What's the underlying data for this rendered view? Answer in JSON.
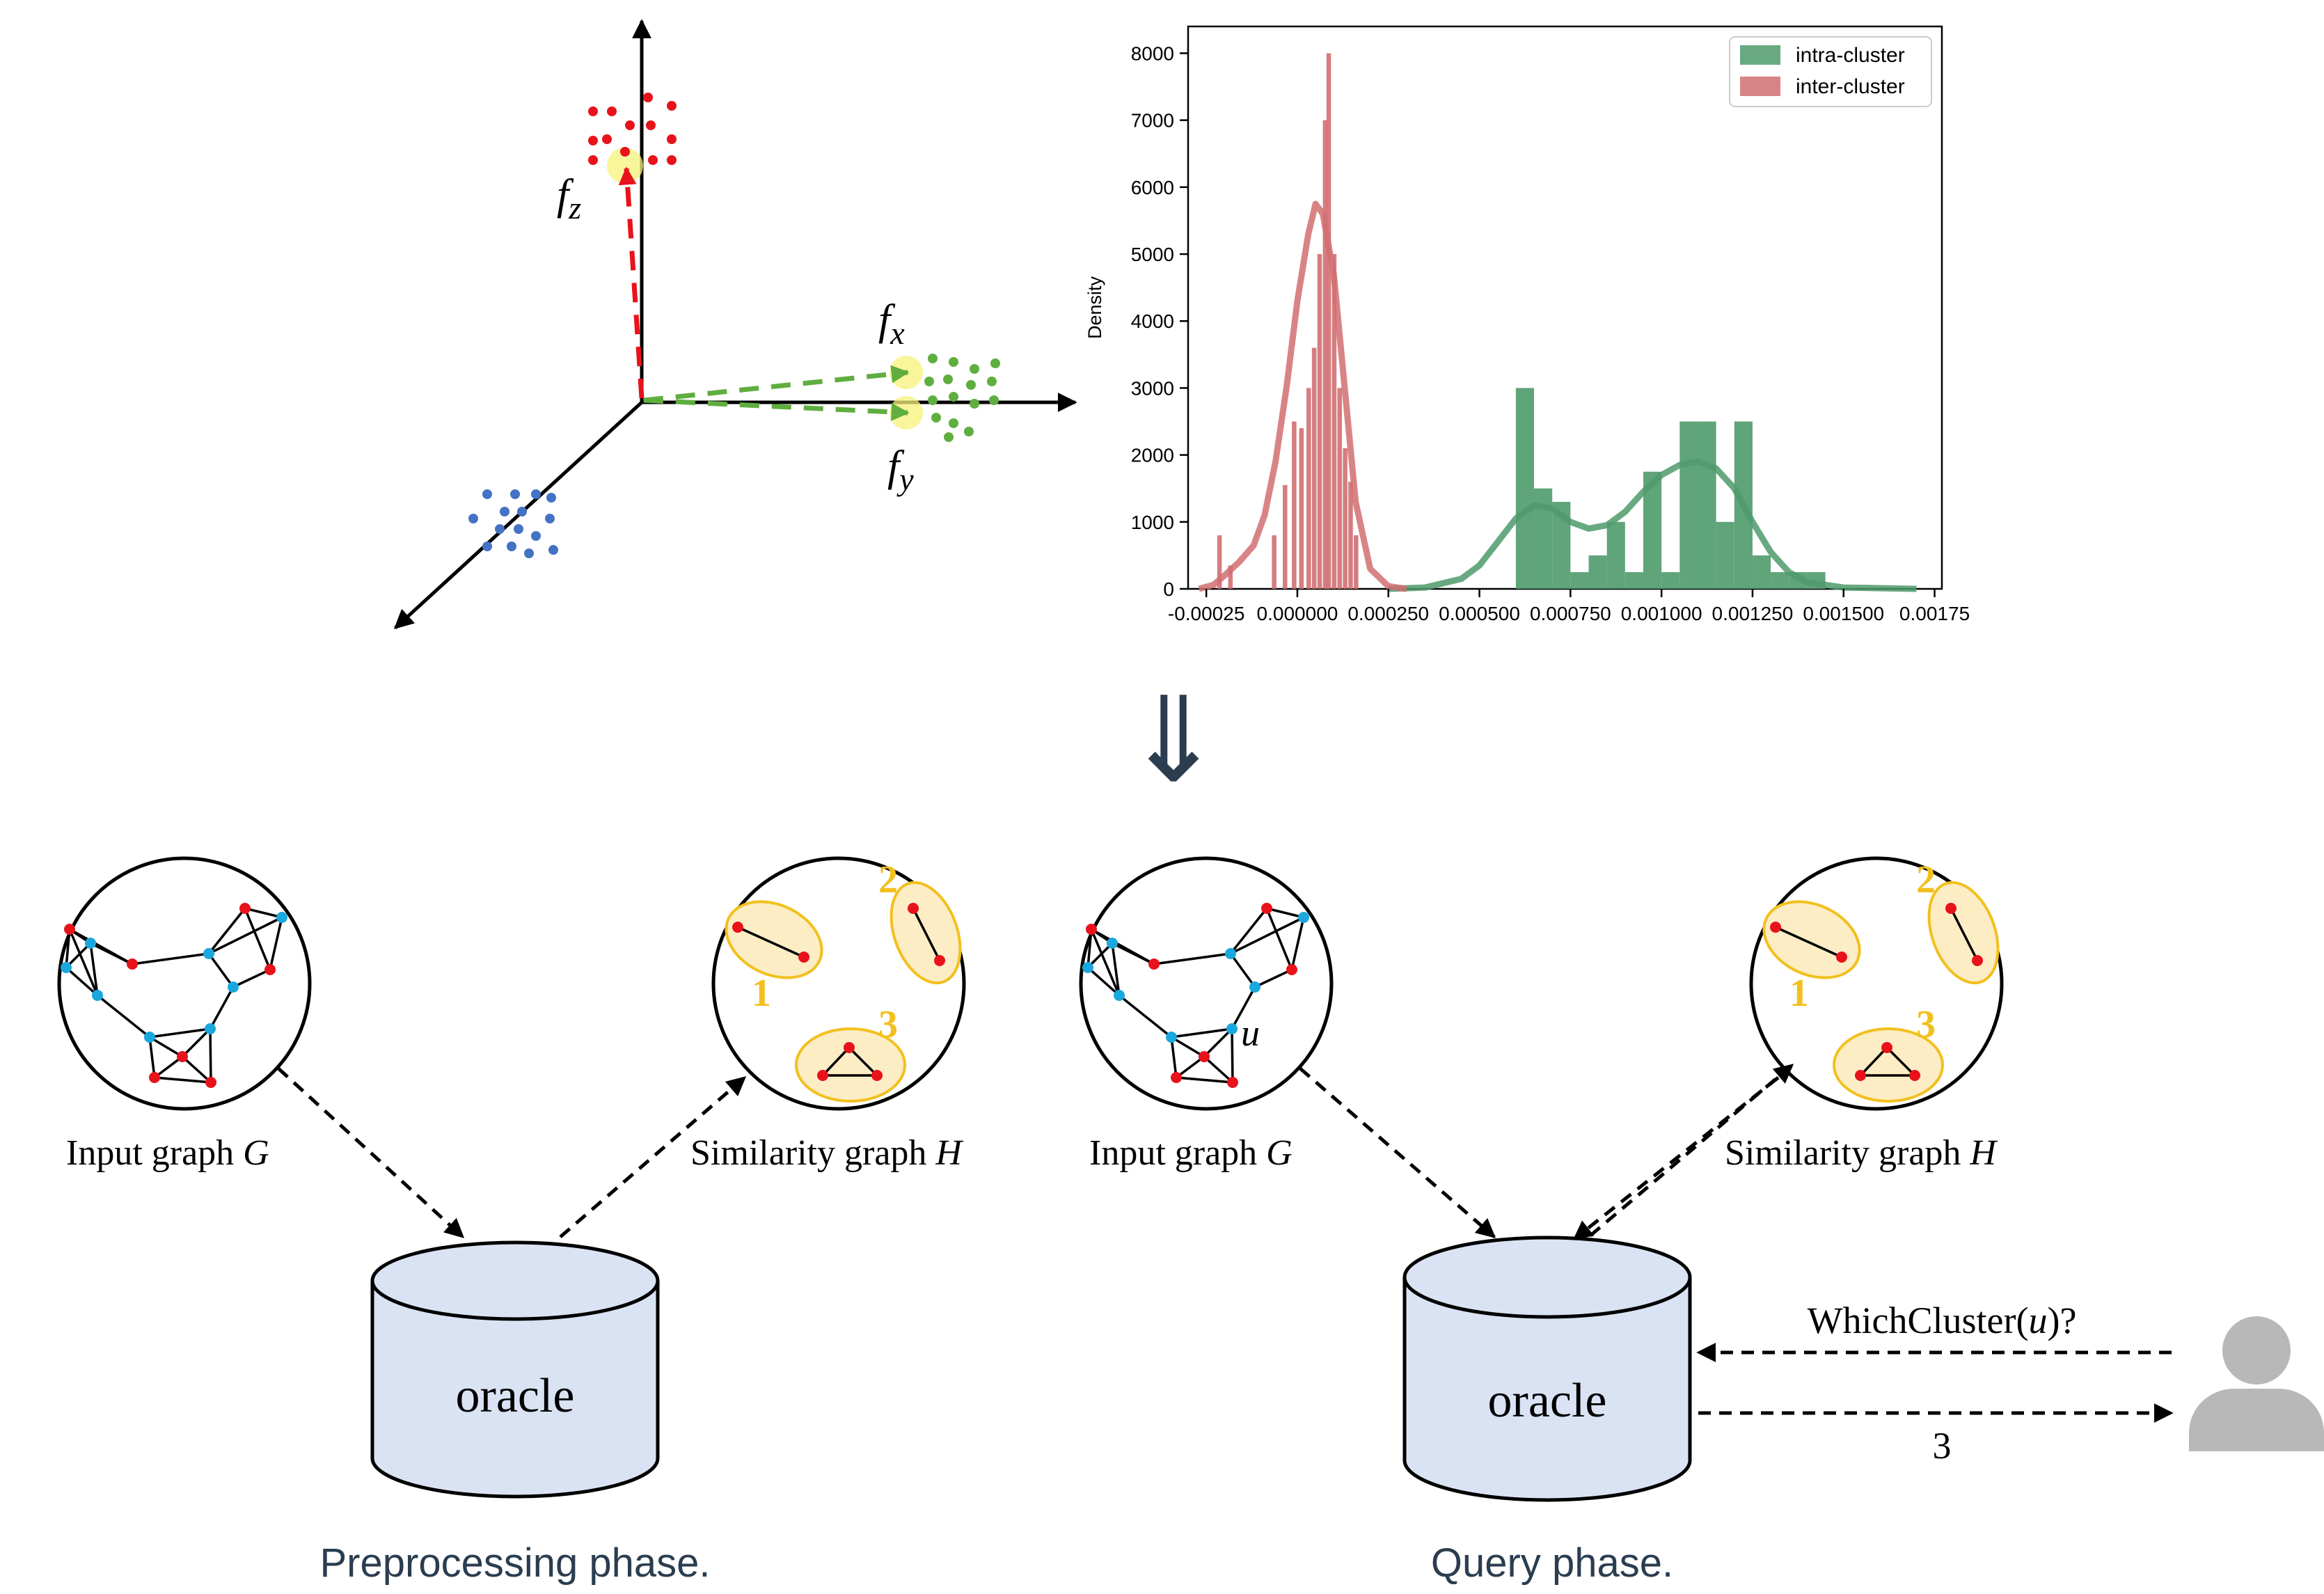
{
  "feature_space": {
    "labels": {
      "fz": "z",
      "fx": "x",
      "fy": "y",
      "f": "f"
    }
  },
  "chart_data": {
    "type": "histogram",
    "ylabel": "Density",
    "xlabel": "",
    "xlim": [
      -0.0003,
      0.00177
    ],
    "ylim": [
      0,
      8400
    ],
    "x_ticks": [
      -0.00025,
      0.0,
      0.00025,
      0.0005,
      0.00075,
      0.001,
      0.00125,
      0.0015,
      0.00175
    ],
    "x_tick_labels": [
      "-0.00025",
      "0.000000",
      "0.000250",
      "0.000500",
      "0.000750",
      "0.001000",
      "0.001250",
      "0.001500",
      "0.00175"
    ],
    "y_ticks": [
      0,
      1000,
      2000,
      3000,
      4000,
      5000,
      6000,
      7000,
      8000
    ],
    "y_tick_labels": [
      "0",
      "1000",
      "2000",
      "3000",
      "4000",
      "5000",
      "6000",
      "7000",
      "8000"
    ],
    "legend_position": "top-right",
    "series": [
      {
        "name": "intra-cluster",
        "color": "#4f9a6c",
        "bin_width": 5e-05,
        "bins": [
          [
            0.0006,
            3000
          ],
          [
            0.00065,
            1500
          ],
          [
            0.0007,
            1300
          ],
          [
            0.00075,
            250
          ],
          [
            0.0008,
            500
          ],
          [
            0.00085,
            1000
          ],
          [
            0.0009,
            250
          ],
          [
            0.00095,
            1750
          ],
          [
            0.001,
            250
          ],
          [
            0.00105,
            2500
          ],
          [
            0.0011,
            2500
          ],
          [
            0.00115,
            1000
          ],
          [
            0.0012,
            2500
          ],
          [
            0.00125,
            500
          ],
          [
            0.0013,
            250
          ],
          [
            0.00135,
            250
          ],
          [
            0.0014,
            250
          ]
        ],
        "kde": [
          [
            0.00025,
            0
          ],
          [
            0.00035,
            20
          ],
          [
            0.00045,
            150
          ],
          [
            0.0005,
            350
          ],
          [
            0.00055,
            700
          ],
          [
            0.0006,
            1050
          ],
          [
            0.00065,
            1250
          ],
          [
            0.0007,
            1200
          ],
          [
            0.00075,
            1000
          ],
          [
            0.0008,
            900
          ],
          [
            0.00085,
            950
          ],
          [
            0.0009,
            1150
          ],
          [
            0.00095,
            1450
          ],
          [
            0.001,
            1700
          ],
          [
            0.00105,
            1850
          ],
          [
            0.0011,
            1900
          ],
          [
            0.00115,
            1800
          ],
          [
            0.0012,
            1500
          ],
          [
            0.00125,
            1000
          ],
          [
            0.0013,
            550
          ],
          [
            0.00135,
            250
          ],
          [
            0.0014,
            100
          ],
          [
            0.0015,
            20
          ],
          [
            0.0017,
            0
          ]
        ]
      },
      {
        "name": "inter-cluster",
        "color": "#d16f72",
        "bin_width": 1.25e-05,
        "bins": [
          [
            -0.00022,
            800
          ],
          [
            -0.00019,
            350
          ],
          [
            -7e-05,
            800
          ],
          [
            -4e-05,
            1550
          ],
          [
            -1.5e-05,
            2500
          ],
          [
            5e-06,
            2400
          ],
          [
            2.5e-05,
            3000
          ],
          [
            4e-05,
            3600
          ],
          [
            5.5e-05,
            5000
          ],
          [
            7e-05,
            7000
          ],
          [
            8e-05,
            8000
          ],
          [
            9.5e-05,
            5000
          ],
          [
            0.00011,
            3000
          ],
          [
            0.000125,
            2100
          ],
          [
            0.00014,
            1600
          ],
          [
            0.000155,
            800
          ]
        ],
        "kde": [
          [
            -0.00027,
            0
          ],
          [
            -0.00023,
            60
          ],
          [
            -0.0002,
            200
          ],
          [
            -0.00016,
            400
          ],
          [
            -0.00012,
            650
          ],
          [
            -9e-05,
            1100
          ],
          [
            -6e-05,
            1900
          ],
          [
            -3e-05,
            3000
          ],
          [
            0.0,
            4300
          ],
          [
            3e-05,
            5300
          ],
          [
            5e-05,
            5750
          ],
          [
            7e-05,
            5600
          ],
          [
            0.0001,
            4700
          ],
          [
            0.00013,
            3000
          ],
          [
            0.00016,
            1300
          ],
          [
            0.0002,
            300
          ],
          [
            0.00025,
            40
          ],
          [
            0.0003,
            0
          ]
        ]
      }
    ]
  },
  "arrow_down_glyph": "⇓",
  "left_panel": {
    "input_label_prefix": "Input graph ",
    "input_label_var": "G",
    "similarity_label_prefix": "Similarity graph ",
    "similarity_label_var": "H",
    "oracle_label": "oracle",
    "phase_caption": "Preprocessing phase.",
    "cluster_numbers": [
      "1",
      "2",
      "3"
    ]
  },
  "right_panel": {
    "input_label_prefix": "Input graph ",
    "input_label_var": "G",
    "similarity_label_prefix": "Similarity graph ",
    "similarity_label_var": "H",
    "oracle_label": "oracle",
    "phase_caption": "Query phase.",
    "query_node_label": "u",
    "query_text_prefix": "WhichCluster(",
    "query_text_var": "u",
    "query_text_suffix": ")?",
    "answer_text": "3",
    "cluster_numbers": [
      "1",
      "2",
      "3"
    ]
  },
  "colors": {
    "node_red": "#e8121b",
    "node_blue": "#1aa7dd",
    "cluster_fill": "#fdedc4",
    "cluster_stroke": "#f2c01e",
    "cluster_number": "#f2c01e",
    "oracle_fill": "#dae3f3",
    "caption": "#2b3d4f",
    "user_icon": "#b8b8b8",
    "red_points": "#e8121b",
    "green_points": "#5fae3f",
    "blue_points": "#4472c4",
    "highlight": "#f7f27a"
  }
}
